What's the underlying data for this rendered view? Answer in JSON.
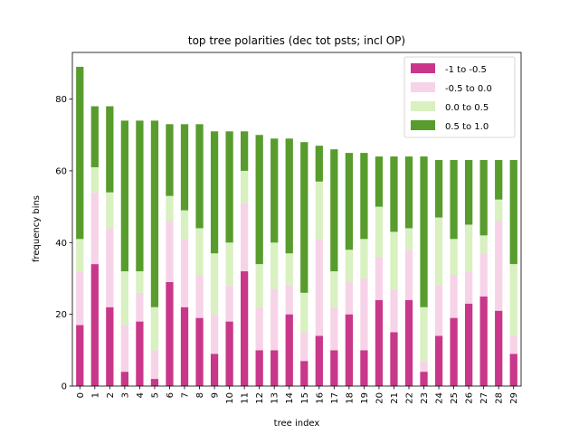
{
  "chart_data": {
    "type": "bar",
    "stacked": true,
    "title": "top tree polarities (dec tot psts; incl OP)",
    "xlabel": "tree index",
    "ylabel": "frequency bins",
    "ylim": [
      0,
      93
    ],
    "yticks": [
      0,
      20,
      40,
      60,
      80
    ],
    "grid": false,
    "legend_position": "top-right",
    "categories": [
      "0",
      "1",
      "2",
      "3",
      "4",
      "5",
      "6",
      "7",
      "8",
      "9",
      "10",
      "11",
      "12",
      "13",
      "14",
      "15",
      "16",
      "17",
      "18",
      "19",
      "20",
      "21",
      "22",
      "23",
      "24",
      "25",
      "26",
      "27",
      "28",
      "29"
    ],
    "series": [
      {
        "name": "-1 to -0.5",
        "color": "#c9378a",
        "values": [
          17,
          34,
          22,
          4,
          18,
          2,
          29,
          22,
          19,
          9,
          18,
          32,
          10,
          10,
          20,
          7,
          14,
          10,
          20,
          10,
          24,
          15,
          24,
          4,
          14,
          19,
          23,
          25,
          21,
          9
        ]
      },
      {
        "name": "-0.5 to 0.0",
        "color": "#f7d3e8",
        "values": [
          15,
          20,
          22,
          13,
          8,
          8,
          17,
          19,
          12,
          11,
          10,
          19,
          12,
          17,
          8,
          8,
          27,
          12,
          9,
          20,
          12,
          12,
          14,
          3,
          14,
          12,
          9,
          12,
          25,
          5
        ]
      },
      {
        "name": "0.0 to 0.5",
        "color": "#d9f0c0",
        "values": [
          9,
          7,
          10,
          15,
          6,
          12,
          7,
          8,
          13,
          17,
          12,
          9,
          12,
          13,
          9,
          11,
          16,
          10,
          9,
          11,
          14,
          16,
          6,
          15,
          19,
          10,
          13,
          5,
          6,
          20
        ]
      },
      {
        "name": "0.5 to 1.0",
        "color": "#589c2d",
        "values": [
          48,
          17,
          24,
          42,
          42,
          52,
          20,
          24,
          29,
          34,
          31,
          11,
          36,
          29,
          32,
          42,
          10,
          34,
          27,
          24,
          14,
          21,
          20,
          42,
          16,
          22,
          18,
          21,
          11,
          29
        ]
      }
    ]
  }
}
